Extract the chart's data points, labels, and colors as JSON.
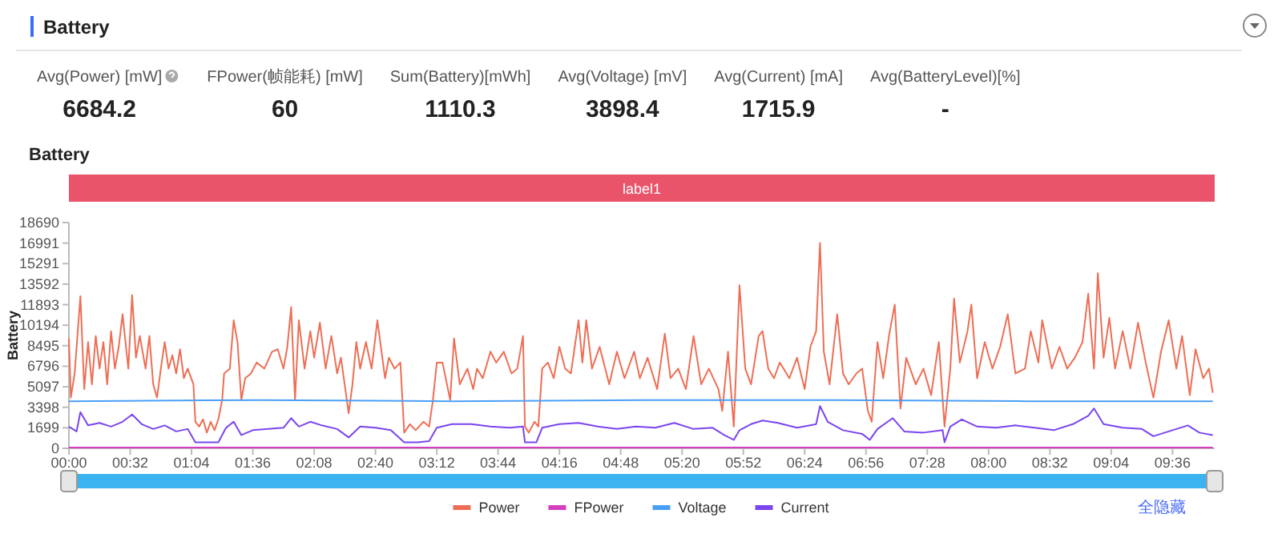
{
  "chart_data": [
    {
      "type": "other",
      "title": "Battery",
      "annotations": [
        "Avg(Power) [mW]",
        "6684.2",
        "FPower(帧能耗) [mW]",
        "60",
        "Sum(Battery)[mWh]",
        "1110.3",
        "Avg(Voltage) [mV]",
        "3898.4",
        "Avg(Current) [mA]",
        "1715.9",
        "Avg(BatteryLevel)[%]",
        "-"
      ]
    },
    {
      "type": "line",
      "title": "Battery",
      "ylabel": "Battery",
      "legend": "bottom",
      "annotations": [
        "全隐藏"
      ],
      "subtitle": "label1",
      "xlim": [
        0,
        598
      ],
      "ylim": [
        0,
        18690
      ],
      "xticks": [
        {
          "value": 0,
          "label": "00:00"
        },
        {
          "value": 32,
          "label": "00:32"
        },
        {
          "value": 64,
          "label": "01:04"
        },
        {
          "value": 96,
          "label": "01:36"
        },
        {
          "value": 128,
          "label": "02:08"
        },
        {
          "value": 160,
          "label": "02:40"
        },
        {
          "value": 192,
          "label": "03:12"
        },
        {
          "value": 224,
          "label": "03:44"
        },
        {
          "value": 256,
          "label": "04:16"
        },
        {
          "value": 288,
          "label": "04:48"
        },
        {
          "value": 320,
          "label": "05:20"
        },
        {
          "value": 352,
          "label": "05:52"
        },
        {
          "value": 384,
          "label": "06:24"
        },
        {
          "value": 416,
          "label": "06:56"
        },
        {
          "value": 448,
          "label": "07:28"
        },
        {
          "value": 480,
          "label": "08:00"
        },
        {
          "value": 512,
          "label": "08:32"
        },
        {
          "value": 544,
          "label": "09:04"
        },
        {
          "value": 576,
          "label": "09:36"
        }
      ],
      "yticks": [
        0,
        1699,
        3398,
        5097,
        6796,
        8495,
        10194,
        11893,
        13592,
        15291,
        16991,
        18690
      ],
      "series": [
        {
          "name": "Power",
          "color": "#ee6e55",
          "x": [
            0,
            1,
            3,
            6,
            8,
            10,
            12,
            14,
            16,
            18,
            20,
            22,
            24,
            26,
            28,
            31,
            33,
            35,
            37,
            40,
            42,
            44,
            46,
            48,
            50,
            52,
            54,
            56,
            58,
            60,
            62,
            65,
            66,
            68,
            70,
            72,
            74,
            76,
            78,
            80,
            81,
            84,
            86,
            88,
            90,
            92,
            95,
            98,
            102,
            106,
            109,
            112,
            114,
            116,
            118,
            120,
            123,
            126,
            128,
            131,
            134,
            137,
            140,
            142,
            146,
            148,
            150,
            152,
            155,
            158,
            161,
            165,
            167,
            170,
            173,
            175,
            178,
            181,
            185,
            188,
            190,
            192,
            195,
            199,
            201,
            204,
            208,
            211,
            213,
            216,
            220,
            223,
            227,
            231,
            234,
            237,
            238,
            240,
            243,
            245,
            247,
            250,
            253,
            256,
            259,
            262,
            266,
            268,
            270,
            273,
            277,
            282,
            286,
            290,
            295,
            298,
            302,
            307,
            311,
            314,
            318,
            322,
            326,
            330,
            334,
            339,
            341,
            344,
            347,
            350,
            353,
            356,
            360,
            362,
            365,
            368,
            371,
            373,
            376,
            380,
            384,
            387,
            390,
            392,
            394,
            397,
            401,
            404,
            407,
            411,
            414,
            417,
            419,
            422,
            425,
            428,
            431,
            434,
            437,
            442,
            446,
            450,
            454,
            457,
            460,
            462,
            465,
            469,
            471,
            474,
            478,
            482,
            486,
            490,
            494,
            499,
            502,
            506,
            508,
            513,
            517,
            521,
            525,
            529,
            532,
            535,
            537,
            540,
            543,
            546,
            550,
            554,
            558,
            562,
            566,
            570,
            574,
            578,
            581,
            585,
            588,
            592,
            595,
            597
          ],
          "values": [
            9100,
            4200,
            6200,
            12600,
            4900,
            8800,
            5300,
            9300,
            6600,
            8800,
            5300,
            9700,
            6600,
            8400,
            11100,
            6600,
            12700,
            7500,
            9300,
            6600,
            9300,
            5300,
            4200,
            6600,
            8800,
            6600,
            7700,
            6200,
            8200,
            5800,
            6600,
            5300,
            2200,
            1800,
            2400,
            1300,
            2200,
            1500,
            2400,
            4000,
            6200,
            6600,
            10600,
            8800,
            4000,
            5800,
            6200,
            7100,
            6600,
            8000,
            8200,
            6600,
            8400,
            11700,
            4000,
            10600,
            6600,
            9700,
            7500,
            10400,
            6600,
            9300,
            6200,
            7500,
            2900,
            5300,
            8800,
            6600,
            8800,
            6600,
            10600,
            5800,
            7500,
            6600,
            7100,
            1300,
            2000,
            1500,
            2200,
            1800,
            4000,
            7100,
            7100,
            4000,
            9100,
            5300,
            6600,
            4900,
            6600,
            5800,
            8000,
            7100,
            8000,
            6200,
            6600,
            9300,
            1800,
            1300,
            2200,
            1800,
            6600,
            7100,
            5800,
            8400,
            6600,
            6200,
            10600,
            7100,
            10600,
            6600,
            8400,
            5300,
            8000,
            5800,
            8000,
            5800,
            7500,
            4900,
            9500,
            5800,
            6600,
            4900,
            9300,
            5300,
            6600,
            4900,
            3100,
            8000,
            1800,
            13500,
            6600,
            5300,
            9300,
            9700,
            6600,
            5800,
            7100,
            6600,
            5800,
            7500,
            4900,
            8400,
            9700,
            17000,
            8000,
            5300,
            11100,
            6200,
            5300,
            6200,
            6600,
            3100,
            2200,
            8800,
            5800,
            9300,
            11900,
            3300,
            7500,
            5300,
            6600,
            4400,
            8800,
            1800,
            6600,
            12400,
            7100,
            9700,
            11900,
            5800,
            8800,
            6600,
            8400,
            11100,
            6200,
            6600,
            9700,
            7100,
            10600,
            6600,
            8400,
            6600,
            7500,
            8800,
            12800,
            6600,
            14500,
            7500,
            10800,
            6600,
            9700,
            6600,
            10400,
            7100,
            4200,
            8000,
            10600,
            6600,
            9300,
            4400,
            8200,
            5800,
            6600,
            4600
          ]
        },
        {
          "name": "FPower",
          "color": "#d43fbf",
          "x": [
            0,
            300,
            597
          ],
          "values": [
            60,
            60,
            60
          ]
        },
        {
          "name": "Voltage",
          "color": "#4a9ff5",
          "x": [
            0,
            100,
            200,
            300,
            400,
            500,
            597
          ],
          "values": [
            3900,
            4000,
            3900,
            4000,
            4000,
            3900,
            3900
          ]
        },
        {
          "name": "Current",
          "color": "#7b45ef",
          "x": [
            0,
            4,
            6,
            10,
            16,
            22,
            28,
            33,
            38,
            44,
            50,
            56,
            62,
            66,
            72,
            78,
            82,
            86,
            90,
            96,
            104,
            112,
            116,
            120,
            126,
            132,
            140,
            146,
            152,
            160,
            168,
            175,
            182,
            188,
            192,
            200,
            210,
            220,
            230,
            237,
            238,
            244,
            247,
            256,
            266,
            276,
            286,
            296,
            306,
            316,
            326,
            336,
            342,
            347,
            350,
            356,
            362,
            370,
            380,
            390,
            392,
            396,
            404,
            414,
            418,
            422,
            430,
            436,
            446,
            456,
            457,
            460,
            466,
            474,
            484,
            494,
            504,
            514,
            524,
            532,
            535,
            540,
            550,
            560,
            566,
            574,
            584,
            590,
            597
          ],
          "values": [
            1800,
            1400,
            3000,
            1900,
            2100,
            1800,
            2200,
            2800,
            2000,
            1600,
            1900,
            1400,
            1600,
            500,
            500,
            500,
            1700,
            2200,
            1100,
            1500,
            1600,
            1700,
            2500,
            1800,
            2200,
            1900,
            1600,
            900,
            1800,
            1700,
            1500,
            500,
            500,
            600,
            1700,
            2000,
            2000,
            1800,
            1700,
            1800,
            500,
            500,
            1700,
            2000,
            2100,
            1800,
            1600,
            1800,
            1700,
            2100,
            1600,
            1700,
            1100,
            700,
            1500,
            2000,
            2300,
            2100,
            1700,
            2000,
            3500,
            2200,
            1500,
            1200,
            700,
            1600,
            2500,
            1400,
            1300,
            1500,
            500,
            1800,
            2400,
            1800,
            1700,
            1900,
            1700,
            1500,
            2000,
            2700,
            3300,
            2000,
            1700,
            1600,
            1000,
            1400,
            1900,
            1300,
            1100
          ]
        }
      ]
    }
  ]
}
